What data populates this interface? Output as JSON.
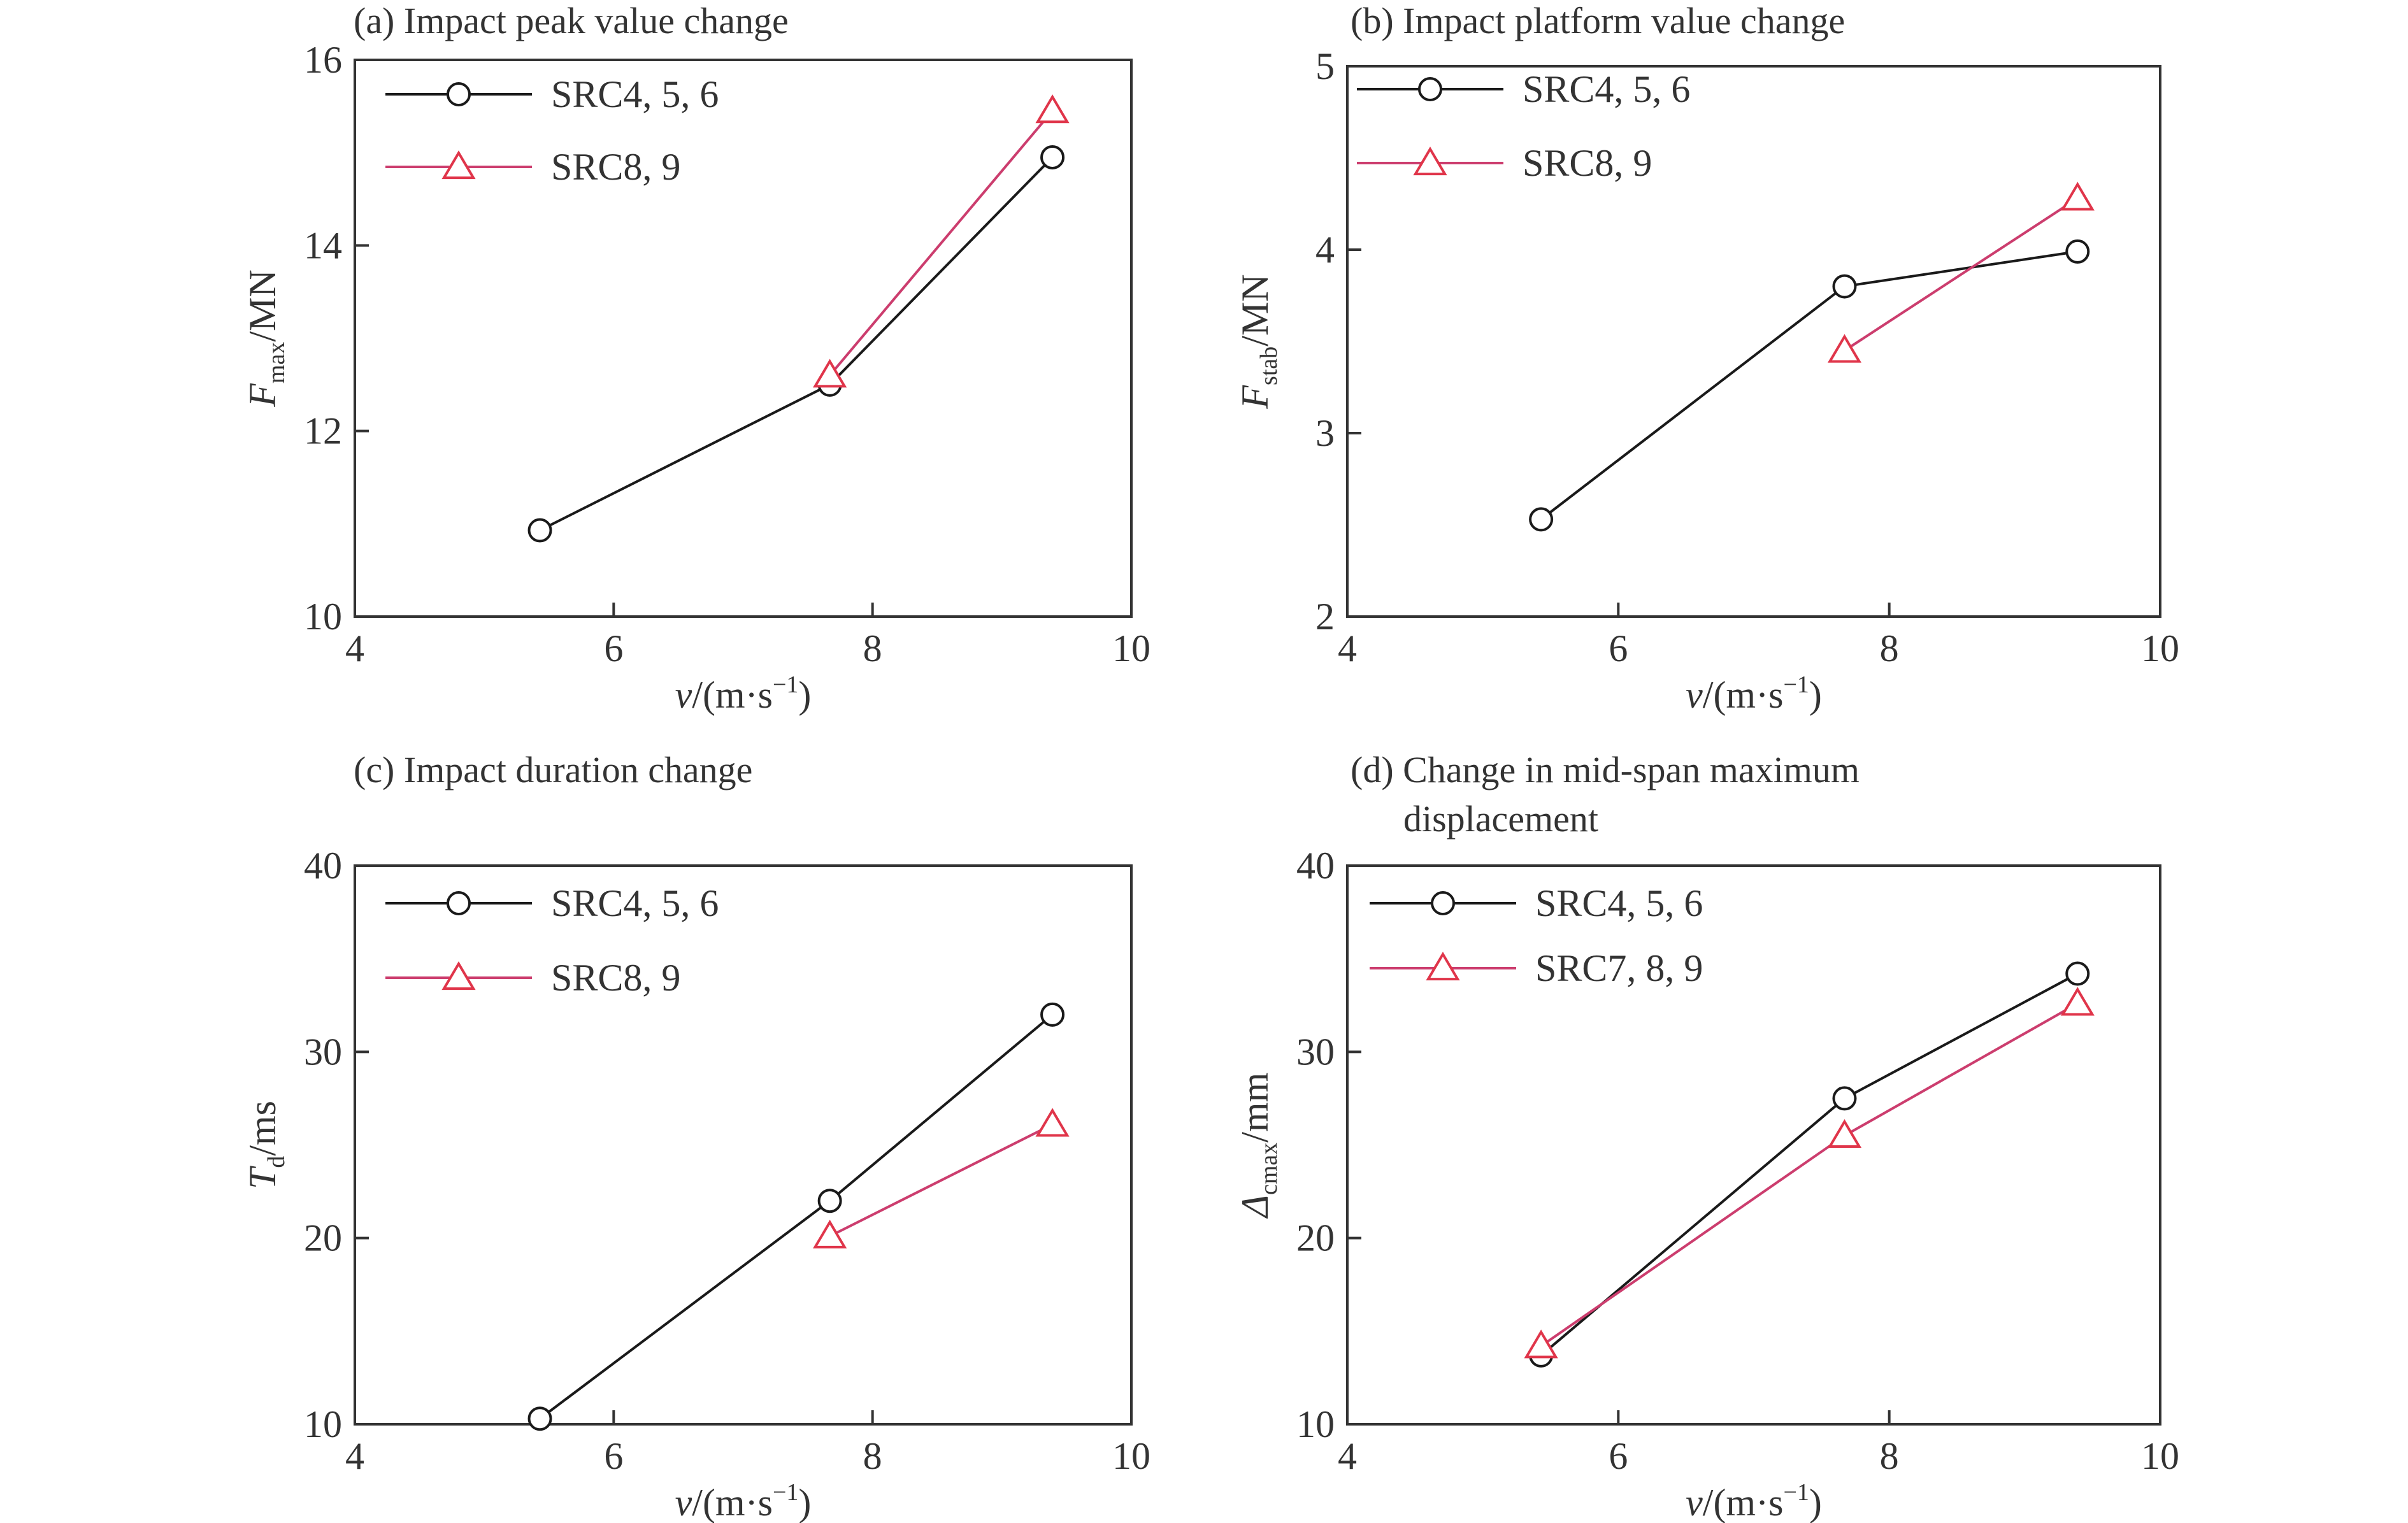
{
  "colors": {
    "series_black": "#1a1a1a",
    "series_red": "#e0354a",
    "series_red_line": "#cc3d6e",
    "axis": "#333333"
  },
  "chart_data": [
    {
      "type": "line",
      "title": "(a) Impact peak value change",
      "xlabel": {
        "var": "v",
        "unit": "/(m·s",
        "sup": "−1",
        "close": ")"
      },
      "ylabel": {
        "var": "F",
        "sub": "max",
        "unit": "/MN"
      },
      "xlim": [
        4,
        10
      ],
      "ylim": [
        10,
        16
      ],
      "xticks": [
        4,
        6,
        8,
        10
      ],
      "yticks": [
        10,
        12,
        14,
        16
      ],
      "legend_position": "top-left",
      "series": [
        {
          "name": "SRC4, 5, 6",
          "marker": "circle",
          "color": "#1a1a1a",
          "x": [
            5.43,
            7.67,
            9.39
          ],
          "y": [
            10.93,
            12.5,
            14.95
          ]
        },
        {
          "name": "SRC8, 9",
          "marker": "triangle",
          "color": "#e0354a",
          "x": [
            7.67,
            9.39
          ],
          "y": [
            12.6,
            15.45
          ]
        }
      ]
    },
    {
      "type": "line",
      "title": "(b) Impact platform value change",
      "xlabel": {
        "var": "v",
        "unit": "/(m·s",
        "sup": "−1",
        "close": ")"
      },
      "ylabel": {
        "var": "F",
        "sub": "stab",
        "unit": "/MN"
      },
      "xlim": [
        4,
        10
      ],
      "ylim": [
        2,
        5
      ],
      "xticks": [
        4,
        6,
        8,
        10
      ],
      "yticks": [
        2,
        3,
        4,
        5
      ],
      "legend_position": "top-left",
      "series": [
        {
          "name": "SRC4, 5, 6",
          "marker": "circle",
          "color": "#1a1a1a",
          "x": [
            5.43,
            7.67,
            9.39
          ],
          "y": [
            2.53,
            3.8,
            3.99
          ]
        },
        {
          "name": "SRC8, 9",
          "marker": "triangle",
          "color": "#e0354a",
          "x": [
            7.67,
            9.39
          ],
          "y": [
            3.45,
            4.28
          ]
        }
      ]
    },
    {
      "type": "line",
      "title": "(c) Impact duration change",
      "xlabel": {
        "var": "v",
        "unit": "/(m·s",
        "sup": "−1",
        "close": ")"
      },
      "ylabel": {
        "var": "T",
        "sub": "d",
        "unit": "/ms"
      },
      "xlim": [
        4,
        10
      ],
      "ylim": [
        10,
        40
      ],
      "xticks": [
        4,
        6,
        8,
        10
      ],
      "yticks": [
        10,
        20,
        30,
        40
      ],
      "legend_position": "top-left",
      "series": [
        {
          "name": "SRC4, 5, 6",
          "marker": "circle",
          "color": "#1a1a1a",
          "x": [
            5.43,
            7.67,
            9.39
          ],
          "y": [
            10.3,
            22.0,
            32.0
          ]
        },
        {
          "name": "SRC8, 9",
          "marker": "triangle",
          "color": "#e0354a",
          "x": [
            7.67,
            9.39
          ],
          "y": [
            20.1,
            26.1
          ]
        }
      ]
    },
    {
      "type": "line",
      "title": "(d) Change in mid-span maximum",
      "title_line2": "displacement",
      "xlabel": {
        "var": "v",
        "unit": "/(m·s",
        "sup": "−1",
        "close": ")"
      },
      "ylabel": {
        "var": "Δ",
        "sub": "cmax",
        "unit": "/mm"
      },
      "xlim": [
        4,
        10
      ],
      "ylim": [
        10,
        40
      ],
      "xticks": [
        4,
        6,
        8,
        10
      ],
      "yticks": [
        10,
        20,
        30,
        40
      ],
      "legend_position": "top-left",
      "series": [
        {
          "name": "SRC4, 5, 6",
          "marker": "circle",
          "color": "#1a1a1a",
          "x": [
            5.43,
            7.67,
            9.39
          ],
          "y": [
            13.7,
            27.5,
            34.2
          ]
        },
        {
          "name": "SRC7, 8, 9",
          "marker": "triangle",
          "color": "#e0354a",
          "x": [
            5.43,
            7.67,
            9.39
          ],
          "y": [
            14.2,
            25.5,
            32.6
          ]
        }
      ]
    }
  ]
}
